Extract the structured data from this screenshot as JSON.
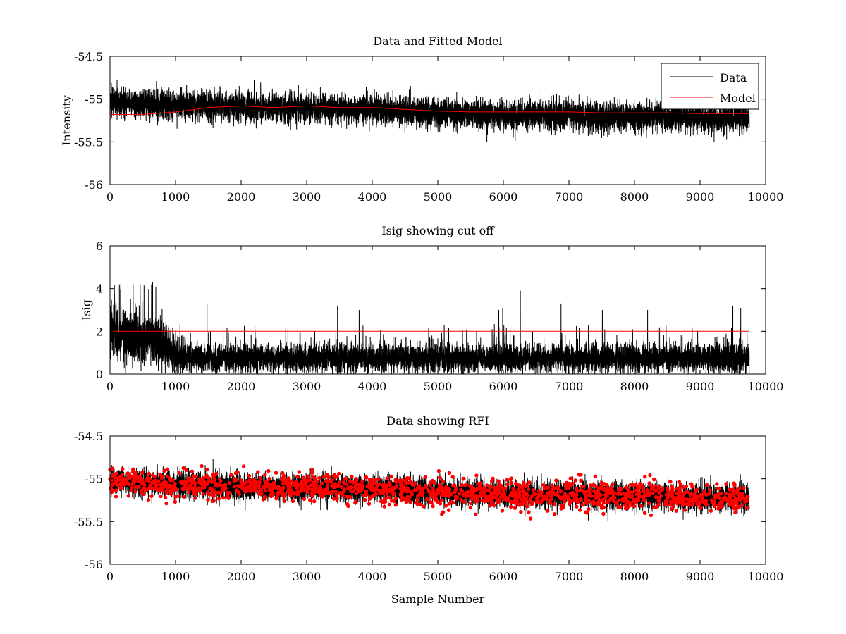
{
  "chart_data": [
    {
      "id": "top",
      "type": "line",
      "title": "Data and Fitted Model",
      "xlabel": "",
      "ylabel": "Intensity",
      "xlim": [
        0,
        10000
      ],
      "ylim": [
        -56,
        -54.5
      ],
      "xticks": [
        0,
        1000,
        2000,
        3000,
        4000,
        5000,
        6000,
        7000,
        8000,
        9000,
        10000
      ],
      "yticks": [
        -56,
        -55.5,
        -55,
        -54.5
      ],
      "grid": false,
      "legend": {
        "position": "top-right",
        "entries": [
          "Data",
          "Model"
        ]
      },
      "series": [
        {
          "name": "Data",
          "style": "noise-line",
          "color": "#000000",
          "n_points": 9750,
          "x": [
            0,
            500,
            1000,
            1500,
            2000,
            2500,
            3000,
            3500,
            4000,
            4500,
            5000,
            5500,
            6000,
            6500,
            7000,
            7500,
            8000,
            8500,
            9000,
            9500,
            9750
          ],
          "center": [
            -55.03,
            -55.05,
            -55.07,
            -55.08,
            -55.09,
            -55.1,
            -55.1,
            -55.11,
            -55.12,
            -55.14,
            -55.16,
            -55.17,
            -55.18,
            -55.19,
            -55.19,
            -55.2,
            -55.2,
            -55.21,
            -55.22,
            -55.22,
            -55.23
          ],
          "spread": 0.22
        },
        {
          "name": "Model",
          "style": "line",
          "color": "#ff0000",
          "x": [
            0,
            500,
            1000,
            1500,
            2000,
            2500,
            3000,
            3500,
            4000,
            4500,
            5000,
            5500,
            6000,
            6500,
            7000,
            7500,
            8000,
            8500,
            9000,
            9500,
            9750
          ],
          "values": [
            -55.18,
            -55.18,
            -55.15,
            -55.1,
            -55.08,
            -55.1,
            -55.08,
            -55.1,
            -55.1,
            -55.12,
            -55.14,
            -55.15,
            -55.15,
            -55.15,
            -55.15,
            -55.16,
            -55.16,
            -55.16,
            -55.17,
            -55.17,
            -55.17
          ]
        }
      ]
    },
    {
      "id": "middle",
      "type": "line",
      "title": "Isig showing cut off",
      "xlabel": "",
      "ylabel": "Isig",
      "xlim": [
        0,
        10000
      ],
      "ylim": [
        0,
        6
      ],
      "xticks": [
        0,
        1000,
        2000,
        3000,
        4000,
        5000,
        6000,
        7000,
        8000,
        9000,
        10000
      ],
      "yticks": [
        0,
        2,
        4,
        6
      ],
      "grid": false,
      "series": [
        {
          "name": "Isig",
          "style": "isig-noise",
          "color": "#000000",
          "n_points": 9750,
          "x": [
            0,
            700,
            1000,
            1200,
            2000,
            5000,
            9750
          ],
          "center": [
            1.9,
            1.6,
            0.9,
            0.75,
            0.75,
            0.75,
            0.75
          ],
          "spread": [
            1.0,
            1.0,
            0.7,
            0.55,
            0.55,
            0.55,
            0.55
          ],
          "peaks": [
            [
              60,
              4.1
            ],
            [
              650,
              4.3
            ],
            [
              1480,
              3.3
            ],
            [
              3470,
              3.2
            ],
            [
              3800,
              3.0
            ],
            [
              5930,
              3.0
            ],
            [
              5990,
              3.1
            ],
            [
              6260,
              3.9
            ],
            [
              6880,
              3.3
            ],
            [
              7510,
              3.0
            ],
            [
              8200,
              3.0
            ],
            [
              9500,
              3.2
            ],
            [
              9620,
              3.1
            ]
          ]
        },
        {
          "name": "Cut off",
          "style": "line",
          "color": "#ff0000",
          "x": [
            0,
            9750
          ],
          "values": [
            2,
            2
          ]
        }
      ]
    },
    {
      "id": "bottom",
      "type": "line",
      "title": "Data showing RFI",
      "xlabel": "Sample Number",
      "ylabel": "",
      "xlim": [
        0,
        10000
      ],
      "ylim": [
        -56,
        -54.5
      ],
      "xticks": [
        0,
        1000,
        2000,
        3000,
        4000,
        5000,
        6000,
        7000,
        8000,
        9000,
        10000
      ],
      "yticks": [
        -56,
        -55.5,
        -55,
        -54.5
      ],
      "grid": false,
      "series": [
        {
          "name": "Data",
          "style": "noise-line",
          "color": "#000000",
          "n_points": 9750,
          "x": [
            0,
            500,
            1000,
            1500,
            2000,
            2500,
            3000,
            3500,
            4000,
            4500,
            5000,
            5500,
            6000,
            6500,
            7000,
            7500,
            8000,
            8500,
            9000,
            9500,
            9750
          ],
          "center": [
            -55.03,
            -55.05,
            -55.07,
            -55.08,
            -55.09,
            -55.1,
            -55.1,
            -55.11,
            -55.12,
            -55.14,
            -55.16,
            -55.17,
            -55.18,
            -55.19,
            -55.19,
            -55.2,
            -55.2,
            -55.21,
            -55.22,
            -55.22,
            -55.23
          ],
          "spread": 0.2
        },
        {
          "name": "RFI",
          "style": "markers",
          "color": "#ff0000",
          "n_points": 1500,
          "x": [
            0,
            500,
            1000,
            1500,
            2000,
            2500,
            3000,
            3500,
            4000,
            4500,
            5000,
            5500,
            6000,
            6500,
            7000,
            7500,
            8000,
            8500,
            9000,
            9500,
            9750
          ],
          "center": [
            -55.03,
            -55.05,
            -55.07,
            -55.08,
            -55.09,
            -55.1,
            -55.1,
            -55.11,
            -55.12,
            -55.14,
            -55.16,
            -55.17,
            -55.18,
            -55.19,
            -55.19,
            -55.2,
            -55.2,
            -55.21,
            -55.22,
            -55.22,
            -55.23
          ],
          "spread": 0.2
        }
      ]
    }
  ]
}
